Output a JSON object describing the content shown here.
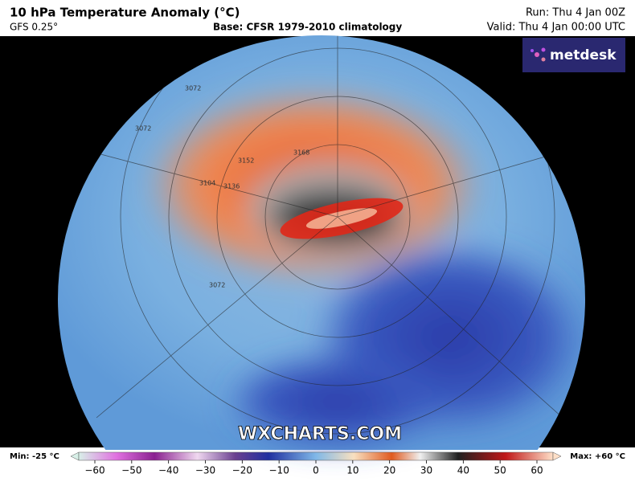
{
  "header": {
    "title": "10 hPa Temperature Anomaly (°C)",
    "model": "GFS 0.25°",
    "base": "Base: CFSR 1979-2010 climatology",
    "run": "Run: Thu 4 Jan 00Z",
    "valid": "Valid: Thu 4 Jan 00:00 UTC"
  },
  "logo": {
    "text": "metdesk"
  },
  "watermark": "WXCHARTS.COM",
  "contours": [
    "3072",
    "3072",
    "3104",
    "3136",
    "3152",
    "3168",
    "3072"
  ],
  "colorbar": {
    "min_label": "Min: -25 °C",
    "max_label": "Max: +60 °C",
    "ticks": [
      "−60",
      "−50",
      "−40",
      "−30",
      "−20",
      "−10",
      "0",
      "10",
      "20",
      "30",
      "40",
      "50",
      "60"
    ]
  }
}
